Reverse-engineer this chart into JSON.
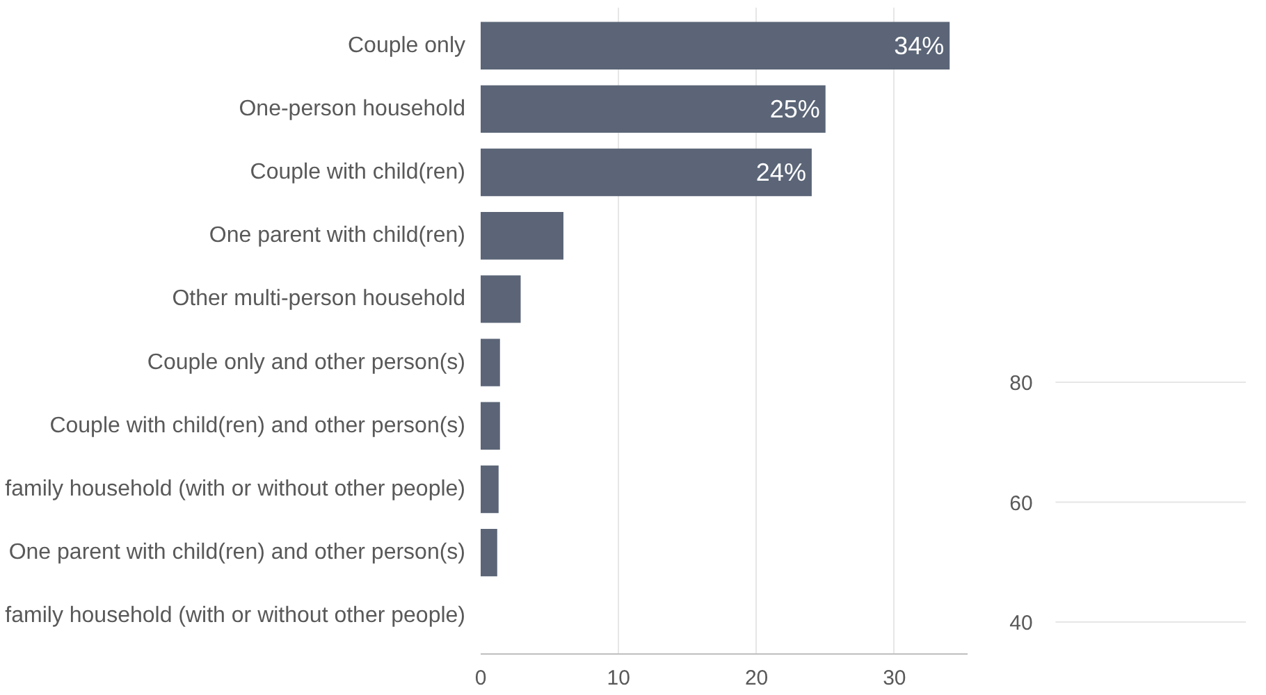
{
  "chart_data": [
    {
      "type": "bar",
      "orientation": "horizontal",
      "categories": [
        "Couple only",
        "One-person household",
        "Couple with child(ren)",
        "One parent with child(ren)",
        "Other multi-person household",
        "Couple only and other person(s)",
        "Couple with child(ren) and other person(s)",
        "family household (with or without other people)",
        "One parent with child(ren) and other person(s)",
        "family household (with or without other people)"
      ],
      "values": [
        34,
        25,
        24,
        6,
        2.9,
        1.4,
        1.4,
        1.3,
        1.2,
        0
      ],
      "color": "#5b6577",
      "value_labels": [
        "34%",
        "25%",
        "24%",
        null,
        null,
        null,
        null,
        null,
        null,
        null
      ],
      "xlim": [
        0,
        35.3
      ],
      "xticks": [
        0,
        10,
        20,
        30
      ],
      "grid": "x"
    },
    {
      "type": "other",
      "annotations": [
        "80",
        "60",
        "40"
      ]
    }
  ]
}
